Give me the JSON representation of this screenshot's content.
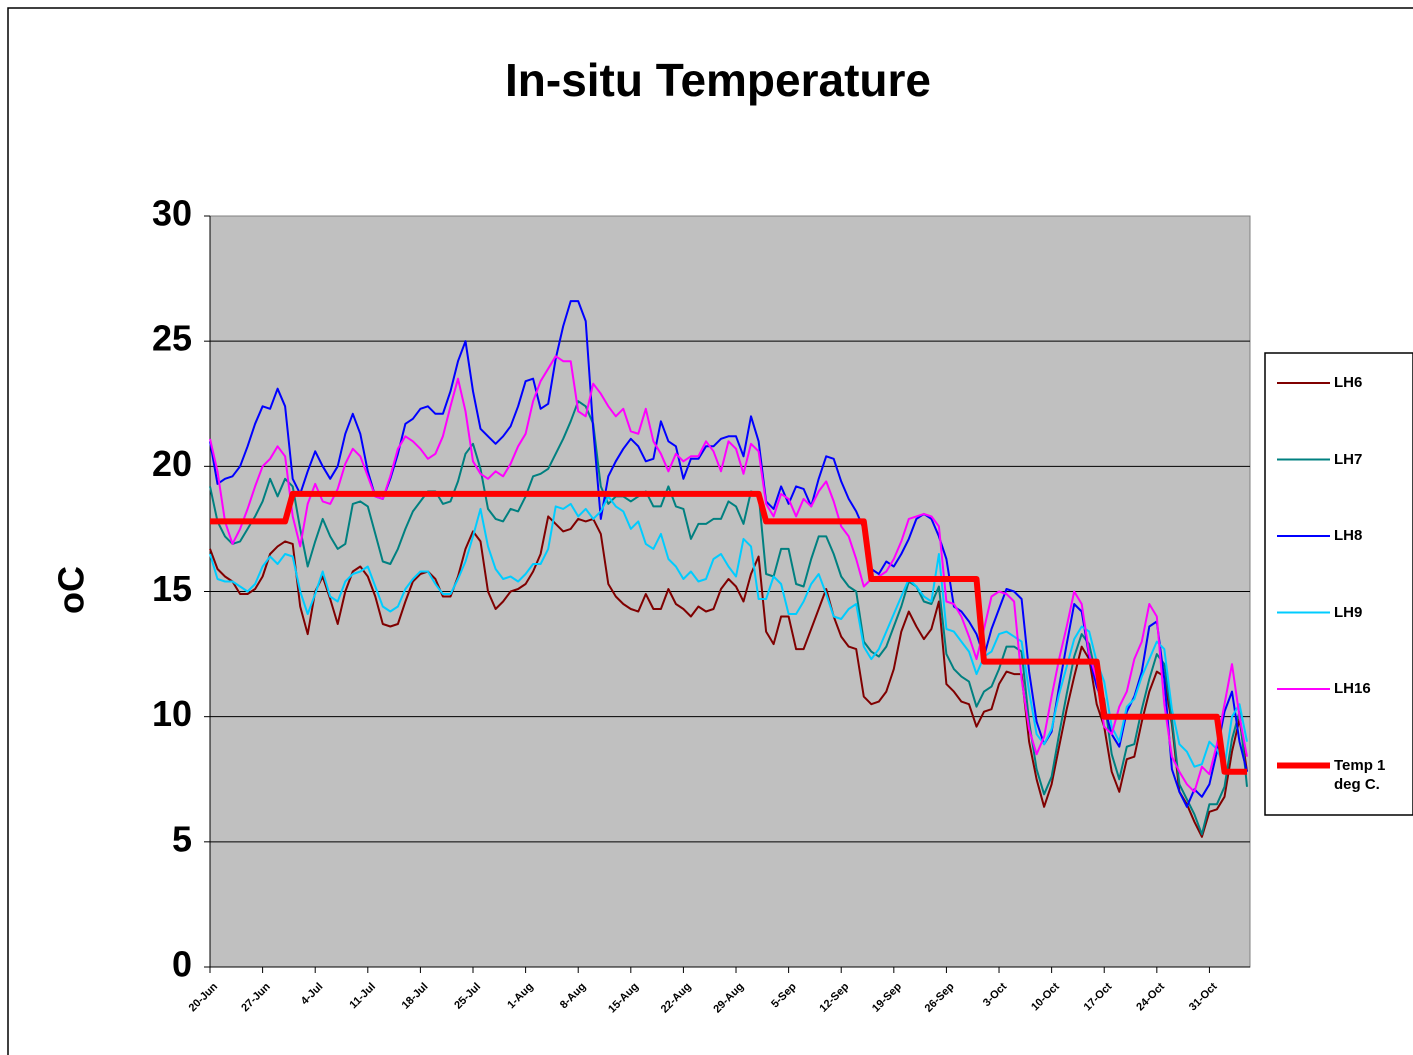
{
  "chart_data": {
    "type": "line",
    "title": "In-situ Temperature",
    "y_label": "oC",
    "categories": [
      "20-Jun",
      null,
      null,
      null,
      null,
      null,
      null,
      "27-Jun",
      null,
      null,
      null,
      null,
      null,
      null,
      "4-Jul",
      null,
      null,
      null,
      null,
      null,
      null,
      "11-Jul",
      null,
      null,
      null,
      null,
      null,
      null,
      "18-Jul",
      null,
      null,
      null,
      null,
      null,
      null,
      "25-Jul",
      null,
      null,
      null,
      null,
      null,
      null,
      "1-Aug",
      null,
      null,
      null,
      null,
      null,
      null,
      "8-Aug",
      null,
      null,
      null,
      null,
      null,
      null,
      "15-Aug",
      null,
      null,
      null,
      null,
      null,
      null,
      "22-Aug",
      null,
      null,
      null,
      null,
      null,
      null,
      "29-Aug",
      null,
      null,
      null,
      null,
      null,
      null,
      "5-Sep",
      null,
      null,
      null,
      null,
      null,
      null,
      "12-Sep",
      null,
      null,
      null,
      null,
      null,
      null,
      "19-Sep",
      null,
      null,
      null,
      null,
      null,
      null,
      "26-Sep",
      null,
      null,
      null,
      null,
      null,
      null,
      "3-Oct",
      null,
      null,
      null,
      null,
      null,
      null,
      "10-Oct",
      null,
      null,
      null,
      null,
      null,
      null,
      "17-Oct",
      null,
      null,
      null,
      null,
      null,
      null,
      "24-Oct",
      null,
      null,
      null,
      null,
      null,
      null,
      "31-Oct",
      null,
      null,
      null,
      null,
      null
    ],
    "series": [
      {
        "name": "LH6",
        "color": "#800000",
        "width": 2,
        "values": [
          16.7,
          15.9,
          15.6,
          15.4,
          14.9,
          14.9,
          15.1,
          15.6,
          16.5,
          16.8,
          17.0,
          16.9,
          14.4,
          13.3,
          15.0,
          15.6,
          14.7,
          13.7,
          15.0,
          15.8,
          16.0,
          15.6,
          14.8,
          13.7,
          13.6,
          13.7,
          14.6,
          15.4,
          15.7,
          15.8,
          15.5,
          14.8,
          14.8,
          15.6,
          16.7,
          17.4,
          17.0,
          15.0,
          14.3,
          14.6,
          15.0,
          15.1,
          15.3,
          15.8,
          16.5,
          18.0,
          17.7,
          17.4,
          17.5,
          17.9,
          17.8,
          17.9,
          17.3,
          15.3,
          14.8,
          14.5,
          14.3,
          14.2,
          14.9,
          14.3,
          14.3,
          15.1,
          14.5,
          14.3,
          14.0,
          14.4,
          14.2,
          14.3,
          15.1,
          15.5,
          15.2,
          14.6,
          15.7,
          16.4,
          13.4,
          12.9,
          14.0,
          14.0,
          12.7,
          12.7,
          13.5,
          14.3,
          15.1,
          14.0,
          13.2,
          12.8,
          12.7,
          10.8,
          10.5,
          10.6,
          11.0,
          11.9,
          13.4,
          14.2,
          13.6,
          13.1,
          13.5,
          14.6,
          11.3,
          11.0,
          10.6,
          10.5,
          9.6,
          10.2,
          10.3,
          11.3,
          11.8,
          11.7,
          11.7,
          9.0,
          7.5,
          6.4,
          7.3,
          8.8,
          10.3,
          11.6,
          12.8,
          12.3,
          10.5,
          9.6,
          7.8,
          7.0,
          8.3,
          8.4,
          9.8,
          11.0,
          11.8,
          11.6,
          9.7,
          7.0,
          6.5,
          5.8,
          5.2,
          6.2,
          6.3,
          6.8,
          8.6,
          9.9,
          7.8
        ]
      },
      {
        "name": "LH7",
        "color": "#008080",
        "width": 2,
        "values": [
          19.2,
          17.8,
          17.2,
          16.9,
          17.0,
          17.5,
          18.0,
          18.6,
          19.5,
          18.8,
          19.5,
          19.2,
          17.5,
          16.0,
          17.0,
          17.9,
          17.2,
          16.7,
          16.9,
          18.5,
          18.6,
          18.4,
          17.3,
          16.2,
          16.1,
          16.7,
          17.5,
          18.2,
          18.6,
          19.0,
          19.0,
          18.5,
          18.6,
          19.4,
          20.5,
          20.9,
          19.9,
          18.3,
          17.9,
          17.8,
          18.3,
          18.2,
          18.8,
          19.6,
          19.7,
          19.9,
          20.5,
          21.1,
          21.8,
          22.6,
          22.4,
          21.7,
          19.2,
          18.5,
          18.8,
          18.8,
          18.6,
          18.8,
          19.0,
          18.4,
          18.4,
          19.2,
          18.4,
          18.3,
          17.1,
          17.7,
          17.7,
          17.9,
          17.9,
          18.6,
          18.4,
          17.7,
          19.0,
          18.9,
          15.7,
          15.6,
          16.7,
          16.7,
          15.3,
          15.2,
          16.3,
          17.2,
          17.2,
          16.5,
          15.6,
          15.2,
          15.0,
          13.0,
          12.6,
          12.4,
          12.8,
          13.6,
          14.4,
          15.4,
          15.2,
          14.6,
          14.5,
          15.2,
          12.5,
          11.9,
          11.6,
          11.4,
          10.4,
          11.0,
          11.2,
          11.9,
          12.8,
          12.8,
          12.6,
          9.8,
          7.9,
          6.9,
          7.6,
          9.3,
          10.9,
          12.4,
          13.3,
          12.9,
          11.5,
          10.7,
          8.5,
          7.5,
          8.8,
          8.9,
          10.3,
          11.5,
          12.5,
          12.1,
          9.9,
          7.3,
          6.7,
          6.1,
          5.3,
          6.5,
          6.5,
          7.2,
          9.1,
          10.2,
          7.2
        ]
      },
      {
        "name": "LH8",
        "color": "#0000ff",
        "width": 2,
        "values": [
          21.0,
          19.3,
          19.5,
          19.6,
          20.0,
          20.8,
          21.7,
          22.4,
          22.3,
          23.1,
          22.4,
          19.5,
          18.9,
          19.8,
          20.6,
          20.0,
          19.5,
          20.0,
          21.3,
          22.1,
          21.3,
          19.8,
          18.8,
          18.7,
          19.5,
          20.5,
          21.7,
          21.9,
          22.3,
          22.4,
          22.1,
          22.1,
          23.0,
          24.2,
          25.0,
          23.0,
          21.5,
          21.2,
          20.9,
          21.2,
          21.6,
          22.4,
          23.4,
          23.5,
          22.3,
          22.5,
          24.3,
          25.6,
          26.6,
          26.6,
          25.8,
          21.5,
          17.9,
          19.6,
          20.2,
          20.7,
          21.1,
          20.8,
          20.2,
          20.3,
          21.8,
          21.0,
          20.8,
          19.5,
          20.3,
          20.3,
          20.8,
          20.8,
          21.1,
          21.2,
          21.2,
          20.4,
          22.0,
          21.0,
          18.6,
          18.3,
          19.2,
          18.5,
          19.2,
          19.1,
          18.4,
          19.5,
          20.4,
          20.3,
          19.4,
          18.7,
          18.2,
          17.5,
          15.9,
          15.7,
          16.2,
          16.0,
          16.5,
          17.1,
          17.9,
          18.1,
          17.9,
          17.2,
          16.3,
          14.4,
          14.2,
          13.8,
          13.3,
          12.4,
          13.5,
          14.3,
          15.1,
          15.0,
          14.7,
          11.8,
          9.8,
          8.9,
          9.4,
          11.2,
          12.9,
          14.5,
          14.2,
          12.4,
          11.2,
          10.4,
          9.3,
          8.8,
          10.2,
          10.8,
          11.8,
          13.6,
          13.8,
          11.5,
          7.9,
          7.0,
          6.4,
          7.1,
          6.8,
          7.3,
          8.6,
          10.2,
          11.0,
          9.0,
          7.8
        ]
      },
      {
        "name": "LH9",
        "color": "#00ccff",
        "width": 2,
        "values": [
          16.5,
          15.5,
          15.4,
          15.4,
          15.2,
          15.0,
          15.3,
          16.0,
          16.4,
          16.1,
          16.5,
          16.4,
          15.0,
          14.1,
          14.9,
          15.8,
          14.8,
          14.6,
          15.4,
          15.7,
          15.8,
          16.0,
          15.2,
          14.4,
          14.2,
          14.4,
          15.1,
          15.5,
          15.8,
          15.8,
          15.3,
          14.9,
          14.9,
          15.5,
          16.2,
          17.2,
          18.3,
          16.8,
          15.9,
          15.5,
          15.6,
          15.4,
          15.7,
          16.1,
          16.1,
          16.7,
          18.4,
          18.3,
          18.5,
          18.0,
          18.3,
          17.9,
          18.2,
          18.8,
          18.4,
          18.2,
          17.5,
          17.8,
          16.9,
          16.7,
          17.3,
          16.3,
          16.0,
          15.5,
          15.8,
          15.4,
          15.5,
          16.3,
          16.5,
          16.0,
          15.6,
          17.1,
          16.8,
          14.7,
          14.7,
          15.6,
          15.3,
          14.1,
          14.1,
          14.6,
          15.3,
          15.7,
          14.9,
          14.0,
          13.9,
          14.3,
          14.5,
          12.8,
          12.3,
          12.7,
          13.4,
          14.1,
          14.8,
          15.5,
          15.2,
          14.8,
          14.6,
          16.5,
          13.5,
          13.4,
          13.0,
          12.6,
          11.7,
          12.4,
          12.6,
          13.3,
          13.4,
          13.2,
          13.0,
          11.0,
          9.3,
          8.9,
          9.5,
          10.9,
          12.0,
          13.1,
          13.6,
          13.4,
          12.2,
          11.4,
          9.6,
          9.0,
          10.4,
          10.7,
          11.6,
          12.3,
          13.0,
          12.7,
          10.3,
          8.9,
          8.6,
          8.0,
          8.1,
          9.0,
          8.7,
          8.0,
          10.0,
          10.5,
          9.0
        ]
      },
      {
        "name": "LH16",
        "color": "#ff00ff",
        "width": 2,
        "values": [
          21.1,
          19.8,
          17.8,
          16.9,
          17.5,
          18.3,
          19.2,
          20.0,
          20.3,
          20.8,
          20.4,
          18.0,
          16.8,
          18.5,
          19.3,
          18.6,
          18.5,
          19.1,
          20.1,
          20.7,
          20.4,
          19.6,
          18.8,
          18.7,
          19.6,
          20.7,
          21.2,
          21.0,
          20.7,
          20.3,
          20.5,
          21.2,
          22.4,
          23.5,
          22.2,
          20.2,
          19.7,
          19.5,
          19.8,
          19.6,
          20.1,
          20.8,
          21.3,
          22.6,
          23.4,
          23.9,
          24.4,
          24.2,
          24.2,
          22.2,
          22.0,
          23.3,
          22.9,
          22.4,
          22.0,
          22.3,
          21.4,
          21.3,
          22.3,
          21.0,
          20.5,
          19.8,
          20.5,
          20.2,
          20.4,
          20.4,
          21.0,
          20.6,
          19.8,
          21.0,
          20.7,
          19.7,
          20.9,
          20.6,
          18.5,
          18.0,
          18.9,
          18.7,
          18.0,
          18.7,
          18.4,
          19.0,
          19.4,
          18.6,
          17.6,
          17.2,
          16.3,
          15.2,
          15.5,
          15.6,
          15.8,
          16.3,
          17.0,
          17.9,
          18.0,
          18.1,
          18.0,
          17.6,
          14.6,
          14.5,
          14.0,
          13.2,
          12.3,
          13.5,
          14.8,
          15.0,
          14.9,
          14.6,
          11.5,
          9.5,
          8.5,
          9.2,
          10.8,
          12.3,
          13.6,
          15.0,
          14.5,
          12.5,
          11.5,
          9.6,
          9.3,
          10.4,
          11.0,
          12.3,
          13.0,
          14.5,
          14.0,
          10.5,
          8.4,
          7.8,
          7.3,
          7.0,
          8.0,
          7.7,
          8.9,
          10.5,
          12.1,
          10.0,
          8.4
        ]
      },
      {
        "name": "Temp 1 deg C.",
        "color": "#ff0000",
        "width": 6,
        "values": [
          17.8,
          17.8,
          17.8,
          17.8,
          17.8,
          17.8,
          17.8,
          17.8,
          17.8,
          17.8,
          17.8,
          18.9,
          18.9,
          18.9,
          18.9,
          18.9,
          18.9,
          18.9,
          18.9,
          18.9,
          18.9,
          18.9,
          18.9,
          18.9,
          18.9,
          18.9,
          18.9,
          18.9,
          18.9,
          18.9,
          18.9,
          18.9,
          18.9,
          18.9,
          18.9,
          18.9,
          18.9,
          18.9,
          18.9,
          18.9,
          18.9,
          18.9,
          18.9,
          18.9,
          18.9,
          18.9,
          18.9,
          18.9,
          18.9,
          18.9,
          18.9,
          18.9,
          18.9,
          18.9,
          18.9,
          18.9,
          18.9,
          18.9,
          18.9,
          18.9,
          18.9,
          18.9,
          18.9,
          18.9,
          18.9,
          18.9,
          18.9,
          18.9,
          18.9,
          18.9,
          18.9,
          18.9,
          18.9,
          18.9,
          17.8,
          17.8,
          17.8,
          17.8,
          17.8,
          17.8,
          17.8,
          17.8,
          17.8,
          17.8,
          17.8,
          17.8,
          17.8,
          17.8,
          15.5,
          15.5,
          15.5,
          15.5,
          15.5,
          15.5,
          15.5,
          15.5,
          15.5,
          15.5,
          15.5,
          15.5,
          15.5,
          15.5,
          15.5,
          12.2,
          12.2,
          12.2,
          12.2,
          12.2,
          12.2,
          12.2,
          12.2,
          12.2,
          12.2,
          12.2,
          12.2,
          12.2,
          12.2,
          12.2,
          12.2,
          10.0,
          10.0,
          10.0,
          10.0,
          10.0,
          10.0,
          10.0,
          10.0,
          10.0,
          10.0,
          10.0,
          10.0,
          10.0,
          10.0,
          10.0,
          10.0,
          7.8,
          7.8,
          7.8,
          7.8
        ]
      }
    ],
    "ylim": [
      0,
      30
    ],
    "yticks": [
      0,
      5,
      10,
      15,
      20,
      25,
      30
    ],
    "grid": true,
    "legend": "right"
  }
}
